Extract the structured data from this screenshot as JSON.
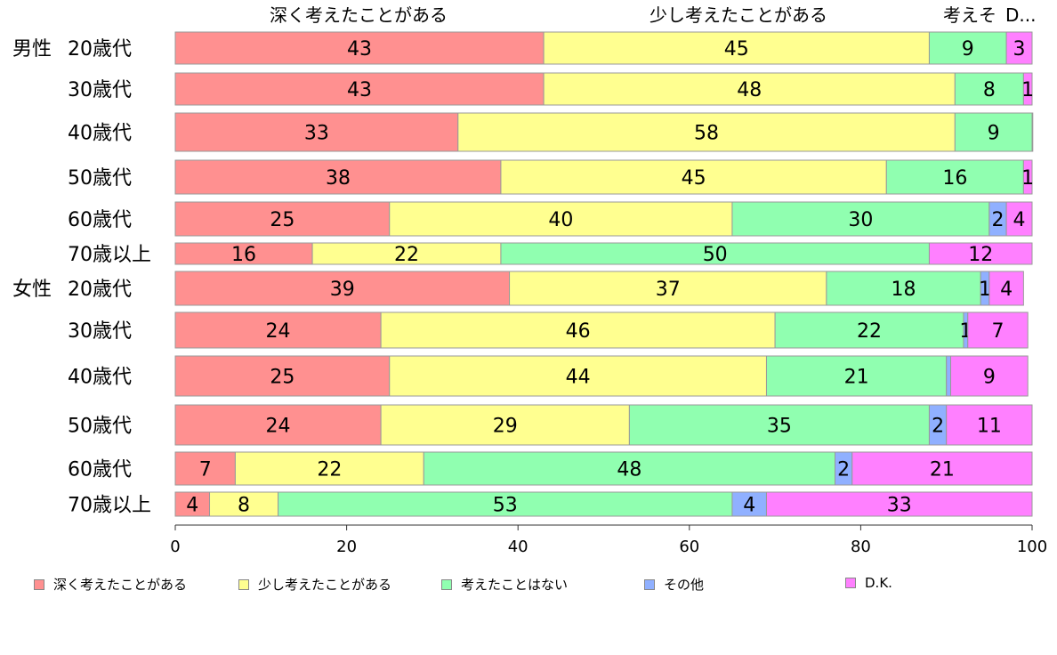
{
  "chart_data": {
    "type": "bar",
    "orientation": "horizontal",
    "stacked": true,
    "xlim": [
      0,
      100
    ],
    "xticks": [
      "0",
      "20",
      "40",
      "60",
      "80",
      "100"
    ],
    "grid": false,
    "legend_position": "bottom",
    "top_labels": [
      "深く考えたことがある",
      "少し考えたことがある",
      "考えそ",
      "D..."
    ],
    "categories": [
      {
        "group": "男性",
        "label": "20歳代"
      },
      {
        "group": "",
        "label": "30歳代"
      },
      {
        "group": "",
        "label": "40歳代"
      },
      {
        "group": "",
        "label": "50歳代"
      },
      {
        "group": "",
        "label": "60歳代"
      },
      {
        "group": "",
        "label": "70歳以上"
      },
      {
        "group": "女性",
        "label": "20歳代"
      },
      {
        "group": "",
        "label": "30歳代"
      },
      {
        "group": "",
        "label": "40歳代"
      },
      {
        "group": "",
        "label": "50歳代"
      },
      {
        "group": "",
        "label": "60歳代"
      },
      {
        "group": "",
        "label": "70歳以上"
      }
    ],
    "series": [
      {
        "name": "深く考えたことがある",
        "color": "#ff9090",
        "values": [
          43,
          43,
          33,
          38,
          25,
          16,
          39,
          24,
          25,
          24,
          7,
          4
        ],
        "labels": [
          "43",
          "43",
          "33",
          "38",
          "25",
          "16",
          "39",
          "24",
          "25",
          "24",
          "7",
          "4"
        ]
      },
      {
        "name": "少し考えたことがある",
        "color": "#ffff90",
        "values": [
          45,
          48,
          58,
          45,
          40,
          22,
          37,
          46,
          44,
          29,
          22,
          8
        ],
        "labels": [
          "45",
          "48",
          "58",
          "45",
          "40",
          "22",
          "37",
          "46",
          "44",
          "29",
          "22",
          "8"
        ]
      },
      {
        "name": "考えたことはない",
        "color": "#90ffb0",
        "values": [
          9,
          8,
          9,
          16,
          30,
          50,
          18,
          22,
          21,
          35,
          48,
          53
        ],
        "labels": [
          "9",
          "8",
          "9",
          "16",
          "30",
          "50",
          "18",
          "22",
          "21",
          "35",
          "48",
          "53"
        ]
      },
      {
        "name": "その他",
        "color": "#90b0ff",
        "values": [
          0,
          0,
          0.4,
          0,
          2,
          0,
          1,
          0.5,
          0.5,
          2,
          2,
          4
        ],
        "labels": [
          "",
          "",
          "",
          "",
          "2",
          "",
          "1",
          "1",
          "",
          "2",
          "2",
          "4"
        ]
      },
      {
        "name": "D.K.",
        "color": "#ff80ff",
        "values": [
          3,
          1,
          0,
          1,
          4,
          12,
          4,
          7,
          9,
          11,
          21,
          33
        ],
        "labels": [
          "3",
          "1",
          "",
          "1",
          "4",
          "12",
          "4",
          "7",
          "9",
          "11",
          "21",
          "33"
        ]
      }
    ]
  }
}
